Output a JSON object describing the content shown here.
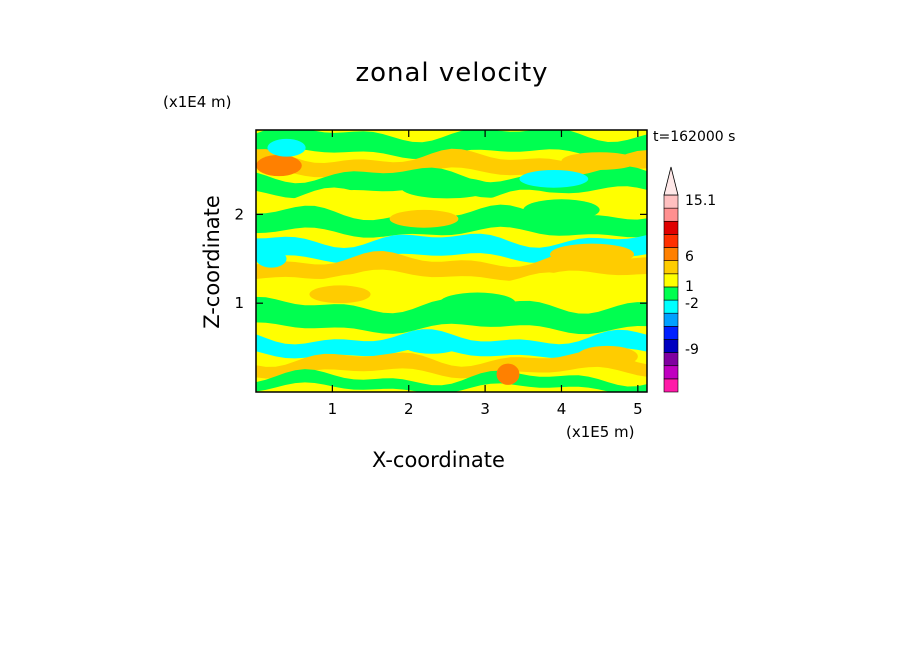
{
  "chart_data": {
    "type": "heatmap",
    "title": "zonal velocity",
    "xlabel": "X-coordinate",
    "ylabel": "Z-coordinate",
    "x_unit_label": "(x1E5 m)",
    "y_unit_label": "(x1E4 m)",
    "time_label": "t=162000 s",
    "xlim": [
      0,
      5.12
    ],
    "ylim": [
      0,
      2.95
    ],
    "x_ticks": [
      {
        "value": 1,
        "label": "1"
      },
      {
        "value": 2,
        "label": "2"
      },
      {
        "value": 3,
        "label": "3"
      },
      {
        "value": 4,
        "label": "4"
      },
      {
        "value": 5,
        "label": "5"
      }
    ],
    "y_ticks": [
      {
        "value": 1,
        "label": "1"
      },
      {
        "value": 2,
        "label": "2"
      }
    ],
    "colorbar": {
      "labels": [
        "15.1",
        "6",
        "1",
        "-2",
        "-9"
      ],
      "colors": [
        "#ff1aa8",
        "#c000c0",
        "#8000a0",
        "#0000c0",
        "#0020ff",
        "#00a0ff",
        "#00ffff",
        "#00ff50",
        "#ffff00",
        "#ffcc00",
        "#ff8000",
        "#ff3000",
        "#e00000",
        "#ff9090",
        "#ffc0c0"
      ],
      "extend_top": true
    },
    "bands": [
      {
        "z": 2.8,
        "thick": 0.22,
        "color": "#00ff50"
      },
      {
        "z": 2.55,
        "thick": 0.18,
        "color": "#ffcc00"
      },
      {
        "z": 2.35,
        "thick": 0.2,
        "color": "#00ff50"
      },
      {
        "z": 2.12,
        "thick": 0.18,
        "color": "#ffff00"
      },
      {
        "z": 1.9,
        "thick": 0.22,
        "color": "#00ff50"
      },
      {
        "z": 1.62,
        "thick": 0.2,
        "color": "#00ffff"
      },
      {
        "z": 1.4,
        "thick": 0.18,
        "color": "#ffcc00"
      },
      {
        "z": 1.15,
        "thick": 0.2,
        "color": "#ffff00"
      },
      {
        "z": 0.85,
        "thick": 0.26,
        "color": "#00ff50"
      },
      {
        "z": 0.52,
        "thick": 0.18,
        "color": "#00ffff"
      },
      {
        "z": 0.3,
        "thick": 0.16,
        "color": "#ffcc00"
      },
      {
        "z": 0.1,
        "thick": 0.12,
        "color": "#00ff50"
      }
    ],
    "blobs": [
      {
        "x": 0.3,
        "z": 2.55,
        "rx": 0.3,
        "rz": 0.12,
        "color": "#ff8000"
      },
      {
        "x": 0.4,
        "z": 2.75,
        "rx": 0.25,
        "rz": 0.1,
        "color": "#00ffff"
      },
      {
        "x": 2.2,
        "z": 1.95,
        "rx": 0.45,
        "rz": 0.1,
        "color": "#ffcc00"
      },
      {
        "x": 2.5,
        "z": 2.3,
        "rx": 0.6,
        "rz": 0.12,
        "color": "#00ff50"
      },
      {
        "x": 3.9,
        "z": 2.4,
        "rx": 0.45,
        "rz": 0.1,
        "color": "#00ffff"
      },
      {
        "x": 4.5,
        "z": 2.6,
        "rx": 0.5,
        "rz": 0.1,
        "color": "#ffcc00"
      },
      {
        "x": 4.4,
        "z": 1.55,
        "rx": 0.55,
        "rz": 0.12,
        "color": "#ffcc00"
      },
      {
        "x": 4.0,
        "z": 2.05,
        "rx": 0.5,
        "rz": 0.12,
        "color": "#00ff50"
      },
      {
        "x": 2.3,
        "z": 0.55,
        "rx": 0.4,
        "rz": 0.12,
        "color": "#00ffff"
      },
      {
        "x": 2.9,
        "z": 1.0,
        "rx": 0.5,
        "rz": 0.12,
        "color": "#00ff50"
      },
      {
        "x": 1.1,
        "z": 1.1,
        "rx": 0.4,
        "rz": 0.1,
        "color": "#ffcc00"
      },
      {
        "x": 3.3,
        "z": 0.2,
        "rx": 0.15,
        "rz": 0.12,
        "color": "#ff8000"
      },
      {
        "x": 4.6,
        "z": 0.4,
        "rx": 0.4,
        "rz": 0.12,
        "color": "#ffcc00"
      },
      {
        "x": 0.2,
        "z": 1.5,
        "rx": 0.2,
        "rz": 0.1,
        "color": "#00ffff"
      }
    ]
  }
}
